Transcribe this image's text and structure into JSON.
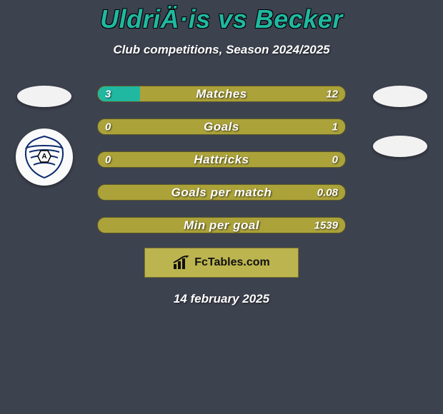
{
  "title": "UldriÄ·is vs Becker",
  "subtitle": "Club competitions, Season 2024/2025",
  "colors": {
    "background": "#3d424f",
    "title": "#20b8a1",
    "bar_base": "#aba23a",
    "bar_fill": "#20b8a1",
    "bar_border": "#5c5a27",
    "footer_box": "#bcb54f",
    "text": "#ffffff"
  },
  "bars": [
    {
      "label": "Matches",
      "left": "3",
      "right": "12",
      "left_pct": 17,
      "right_pct": 0
    },
    {
      "label": "Goals",
      "left": "0",
      "right": "1",
      "left_pct": 0,
      "right_pct": 0
    },
    {
      "label": "Hattricks",
      "left": "0",
      "right": "0",
      "left_pct": 0,
      "right_pct": 0
    },
    {
      "label": "Goals per match",
      "left": "",
      "right": "0.08",
      "left_pct": 0,
      "right_pct": 0
    },
    {
      "label": "Min per goal",
      "left": "",
      "right": "1539",
      "left_pct": 0,
      "right_pct": 0
    }
  ],
  "footer_brand": "FcTables.com",
  "footer_date": "14 february 2025"
}
